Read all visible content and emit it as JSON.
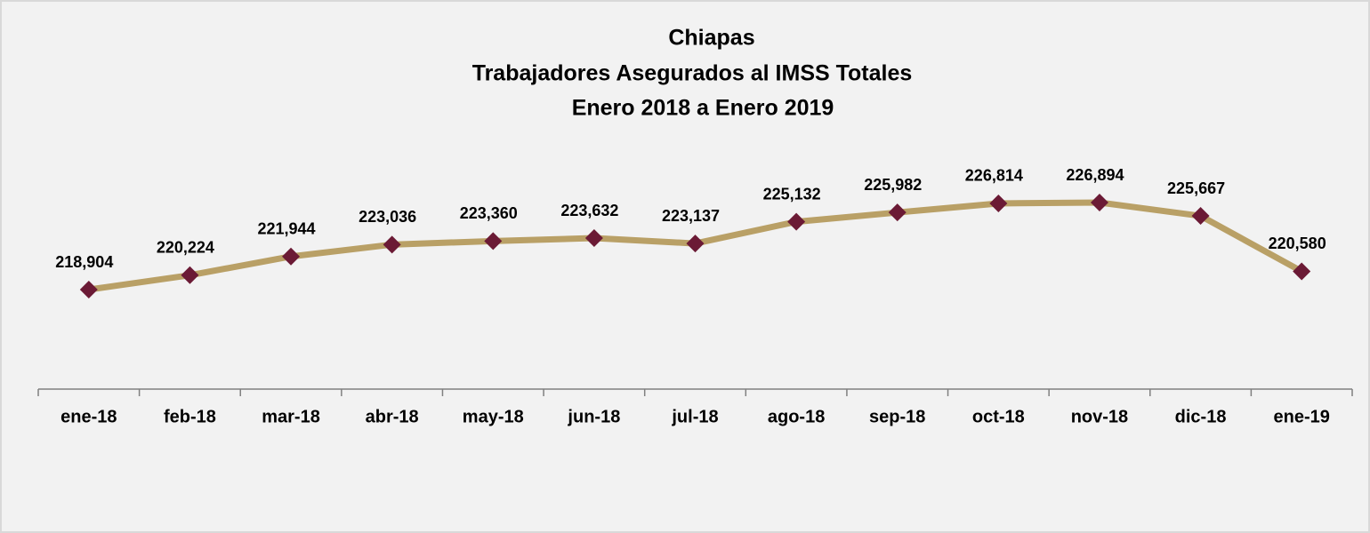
{
  "chart_data": {
    "type": "line",
    "title": [
      "Chiapas",
      "Trabajadores Asegurados al IMSS Totales",
      "Enero 2018 a Enero 2019"
    ],
    "categories": [
      "ene-18",
      "feb-18",
      "mar-18",
      "abr-18",
      "may-18",
      "jun-18",
      "jul-18",
      "ago-18",
      "sep-18",
      "oct-18",
      "nov-18",
      "dic-18",
      "ene-19"
    ],
    "series": [
      {
        "color": "#b9a066",
        "marker_color": "#6b1a35",
        "values": [
          218904,
          220224,
          221944,
          223036,
          223360,
          223632,
          223137,
          225132,
          225982,
          226814,
          226894,
          225667,
          220580
        ],
        "value_labels": [
          "218,904",
          "220,224",
          "221,944",
          "223,036",
          "223,360",
          "223,632",
          "223,137",
          "225,132",
          "225,982",
          "226,814",
          "226,894",
          "225,667",
          "220,580"
        ]
      }
    ]
  }
}
